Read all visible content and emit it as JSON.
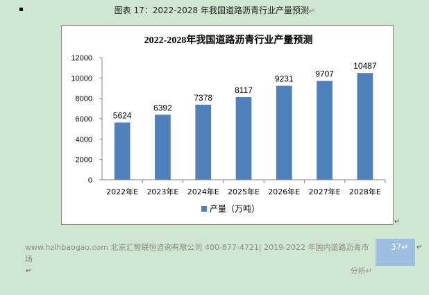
{
  "caption": {
    "text": "图表 17：2022-2028 年我国道路沥青行业产量预测",
    "mark": "↵"
  },
  "chart_data": {
    "type": "bar",
    "title": "2022-2028年我国道路沥青行业产量预测",
    "categories": [
      "2022年E",
      "2023年E",
      "2024年E",
      "2025年E",
      "2026年E",
      "2027年E",
      "2028年E"
    ],
    "series": [
      {
        "name": "产量（万吨）",
        "values": [
          5624,
          6392,
          7378,
          8117,
          9231,
          9707,
          10487
        ]
      }
    ],
    "ylim": [
      0,
      12000
    ],
    "yticks": [
      0,
      2000,
      4000,
      6000,
      8000,
      10000,
      12000
    ],
    "grid": false,
    "legend": "bottom",
    "bar_color": "#4f81bd",
    "data_labels": true
  },
  "editor_marks": {
    "after_chart": "↵",
    "after_page_num": "↵",
    "end": "↵"
  },
  "footer": {
    "line1": "www.hzlhbaogao.com 北京汇智联恒咨询有限公司  400-877-4721| 2019-2022 年国内道路沥青市场",
    "line2": "分析↵",
    "page_number": "37↵"
  }
}
